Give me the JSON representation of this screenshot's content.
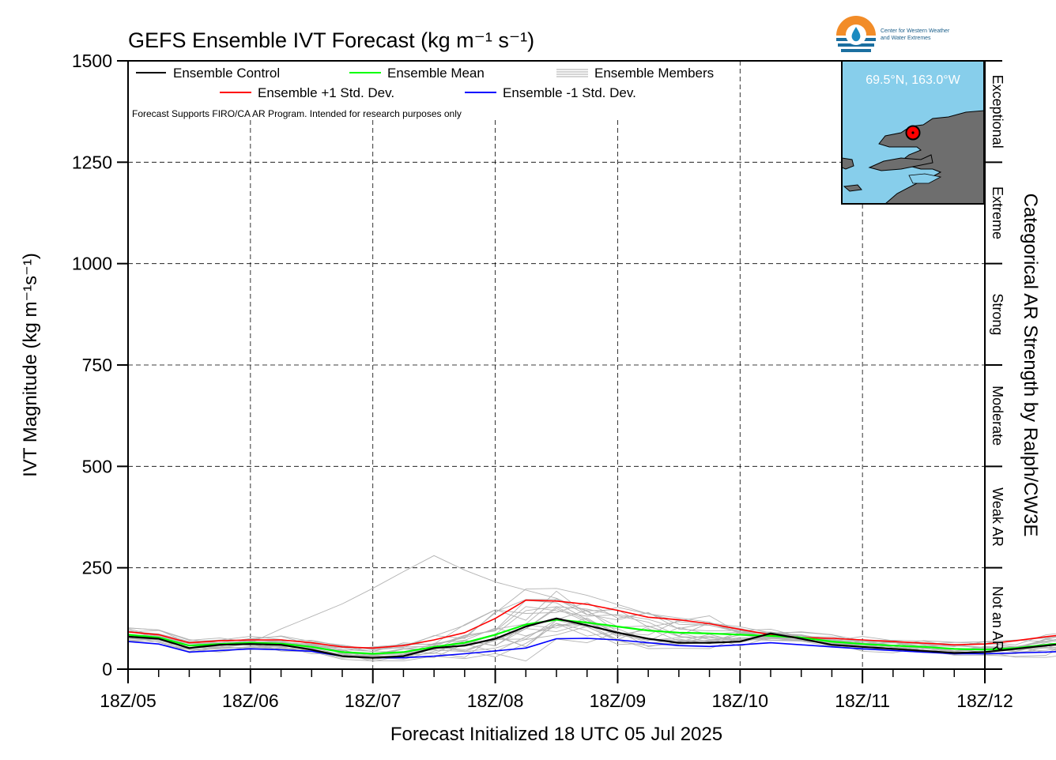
{
  "title": "GEFS Ensemble IVT Forecast (kg m⁻¹ s⁻¹)",
  "xlabel": "Forecast Initialized 18 UTC 05 Jul 2025",
  "ylabel": "IVT Magnitude (kg m⁻¹s⁻¹)",
  "right_axis_title": "Categorical AR Strength by Ralph/CW3E",
  "note": "Forecast Supports FIRO/CA AR Program. Intended for research purposes only",
  "logo": {
    "line1": "Center for Western Weather",
    "line2": "and Water Extremes"
  },
  "inset": {
    "location_label": "69.5°N, 163.0°W",
    "marker_icon": "location-marker-icon"
  },
  "categories": [
    {
      "label": "Not an AR",
      "from": 0,
      "to": 250
    },
    {
      "label": "Weak AR",
      "from": 250,
      "to": 500
    },
    {
      "label": "Moderate",
      "from": 500,
      "to": 750
    },
    {
      "label": "Strong",
      "from": 750,
      "to": 1000
    },
    {
      "label": "Extreme",
      "from": 1000,
      "to": 1250
    },
    {
      "label": "Exceptional",
      "from": 1250,
      "to": 1500
    }
  ],
  "legend": [
    {
      "label": "Ensemble Control",
      "color": "#000000"
    },
    {
      "label": "Ensemble Mean",
      "color": "#00ff00"
    },
    {
      "label": "Ensemble Members",
      "color": "#aaaaaa"
    },
    {
      "label": "Ensemble +1 Std. Dev.",
      "color": "#ff0000"
    },
    {
      "label": "Ensemble -1 Std. Dev.",
      "color": "#0000ff"
    }
  ],
  "chart_data": {
    "type": "line",
    "title": "GEFS Ensemble IVT Forecast (kg m⁻¹ s⁻¹)",
    "xlabel": "Forecast Initialized 18 UTC 05 Jul 2025",
    "ylabel": "IVT Magnitude (kg m⁻¹s⁻¹)",
    "x_ticks": [
      "18Z/05",
      "18Z/06",
      "18Z/07",
      "18Z/08",
      "18Z/09",
      "18Z/10",
      "18Z/11",
      "18Z/12"
    ],
    "x_hours_per_step": 6,
    "ylim": [
      0,
      1500
    ],
    "y_ticks": [
      0,
      250,
      500,
      750,
      1000,
      1250,
      1500
    ],
    "grid": true,
    "legend_position": "top-left",
    "series": [
      {
        "name": "Ensemble Control",
        "color": "#000000",
        "width": 2.2,
        "values": [
          80,
          75,
          52,
          60,
          62,
          60,
          48,
          32,
          28,
          32,
          52,
          58,
          75,
          105,
          125,
          108,
          90,
          75,
          65,
          65,
          68,
          88,
          75,
          60,
          55,
          50,
          45,
          40,
          42,
          50,
          58,
          65,
          68,
          72,
          88,
          85,
          88,
          100,
          135,
          138,
          120,
          125,
          105,
          112,
          122,
          132,
          142,
          128,
          98,
          78,
          75,
          65,
          65,
          75,
          90,
          95,
          102,
          115,
          110
        ]
      },
      {
        "name": "Ensemble Mean",
        "color": "#00ff00",
        "width": 2.2,
        "values": [
          85,
          78,
          58,
          62,
          65,
          63,
          55,
          42,
          38,
          42,
          55,
          65,
          85,
          110,
          122,
          115,
          105,
          95,
          90,
          88,
          85,
          82,
          78,
          68,
          62,
          58,
          55,
          50,
          48,
          52,
          60,
          68,
          72,
          75,
          80,
          82,
          85,
          88,
          92,
          94,
          93,
          92,
          91,
          90,
          90,
          90,
          88,
          85,
          82,
          80,
          78,
          77,
          78,
          80,
          80,
          78,
          76,
          75,
          74
        ]
      },
      {
        "name": "Ensemble +1 Std. Dev.",
        "color": "#ff0000",
        "width": 1.6,
        "values": [
          92,
          85,
          65,
          70,
          72,
          72,
          65,
          55,
          52,
          58,
          72,
          90,
          125,
          170,
          168,
          160,
          145,
          128,
          122,
          112,
          98,
          85,
          78,
          76,
          72,
          68,
          64,
          60,
          62,
          70,
          80,
          88,
          90,
          92,
          98,
          108,
          125,
          145,
          150,
          158,
          150,
          145,
          135,
          132,
          138,
          145,
          140,
          130,
          122,
          120,
          115,
          115,
          118,
          125,
          125,
          118,
          112,
          110,
          108
        ]
      },
      {
        "name": "Ensemble -1 Std. Dev.",
        "color": "#0000ff",
        "width": 1.6,
        "values": [
          68,
          62,
          42,
          46,
          50,
          48,
          44,
          32,
          28,
          28,
          32,
          38,
          45,
          52,
          75,
          76,
          72,
          65,
          58,
          56,
          60,
          65,
          60,
          55,
          50,
          46,
          42,
          38,
          38,
          40,
          42,
          45,
          47,
          50,
          52,
          50,
          45,
          40,
          36,
          34,
          32,
          34,
          42,
          45,
          40,
          36,
          32,
          36,
          40,
          38,
          36,
          35,
          34,
          34,
          36,
          38,
          35,
          32,
          32
        ]
      }
    ],
    "members_note": "Ensemble Members drawn as thin grey lines spread around the mean (approx. 20 members, range roughly 20–310)"
  }
}
